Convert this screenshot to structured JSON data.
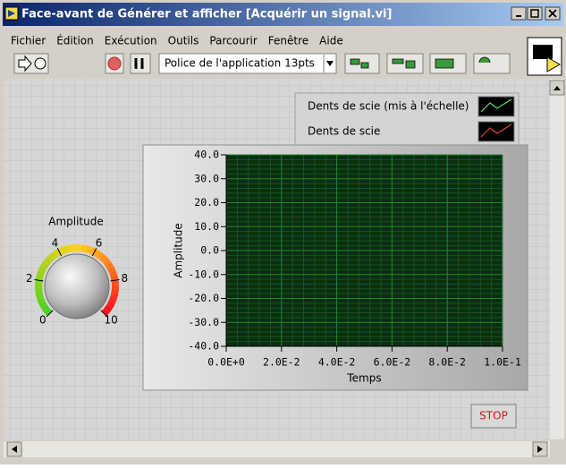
{
  "window": {
    "title": "Face-avant de Générer et afficher [Acquérir un signal.vi]"
  },
  "menu": [
    "Fichier",
    "Édition",
    "Exécution",
    "Outils",
    "Parcourir",
    "Fenêtre",
    "Aide"
  ],
  "toolbar": {
    "font": "Police de l'application 13pts"
  },
  "knob": {
    "label": "Amplitude",
    "min": 0,
    "max": 10,
    "ticks": [
      0,
      2,
      4,
      6,
      8,
      10
    ]
  },
  "graph": {
    "legend": [
      {
        "name": "Dents de scie (mis à l'échelle)",
        "color": "#5ee05e"
      },
      {
        "name": "Dents de scie",
        "color": "#e04a3a"
      }
    ],
    "ylabel": "Amplitude",
    "xlabel": "Temps",
    "ylim": [
      -40,
      40
    ],
    "yticks": [
      {
        "value": 40,
        "label": "40.0"
      },
      {
        "value": 30,
        "label": "30.0"
      },
      {
        "value": 20,
        "label": "20.0"
      },
      {
        "value": 10,
        "label": "10.0"
      },
      {
        "value": 0,
        "label": "0.0"
      },
      {
        "value": -10,
        "label": "-10.0"
      },
      {
        "value": -20,
        "label": "-20.0"
      },
      {
        "value": -30,
        "label": "-30.0"
      },
      {
        "value": -40,
        "label": "-40.0"
      }
    ],
    "xlim": [
      0,
      0.1
    ],
    "xticks": [
      {
        "value": 0,
        "label": "0.0E+0"
      },
      {
        "value": 0.02,
        "label": "2.0E-2"
      },
      {
        "value": 0.04,
        "label": "4.0E-2"
      },
      {
        "value": 0.06,
        "label": "6.0E-2"
      },
      {
        "value": 0.08,
        "label": "8.0E-2"
      },
      {
        "value": 0.1,
        "label": "1.0E-1"
      }
    ]
  },
  "stop": "STOP"
}
